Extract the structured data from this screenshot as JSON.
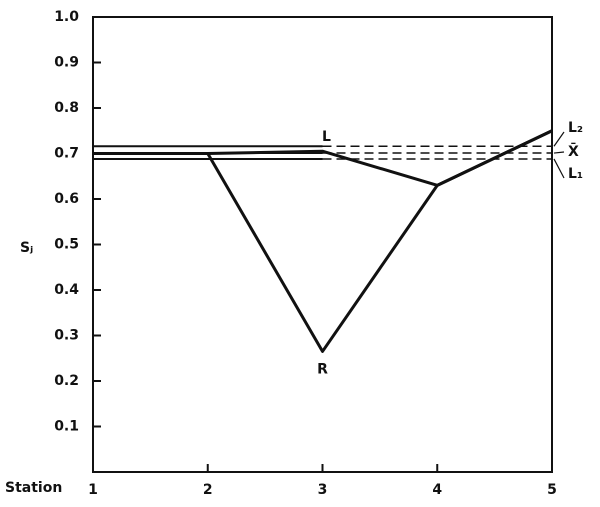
{
  "chart_data": {
    "type": "line",
    "ylabel": "Sⱼ",
    "xlabel": "Station",
    "x": [
      1,
      2,
      3,
      4,
      5
    ],
    "xlim": [
      1,
      5
    ],
    "xticks": [
      1,
      2,
      3,
      4,
      5
    ],
    "ylim": [
      0,
      1
    ],
    "yticks": [
      0.1,
      0.2,
      0.3,
      0.4,
      0.5,
      0.6,
      0.7,
      0.8,
      0.9,
      {
        "value": 1,
        "label": "1.0"
      }
    ],
    "color": "#111111",
    "series": [
      {
        "name": "R",
        "values": [
          0.7,
          0.7,
          0.265,
          0.63,
          0.75
        ]
      },
      {
        "name": "L",
        "values": [
          0.7,
          0.7,
          0.705,
          0.63,
          0.75
        ]
      }
    ],
    "reference_lines": [
      {
        "label": "L₂",
        "value": 0.716
      },
      {
        "label": "X̄",
        "value": 0.701
      },
      {
        "label": "L₁",
        "value": 0.688
      }
    ]
  }
}
